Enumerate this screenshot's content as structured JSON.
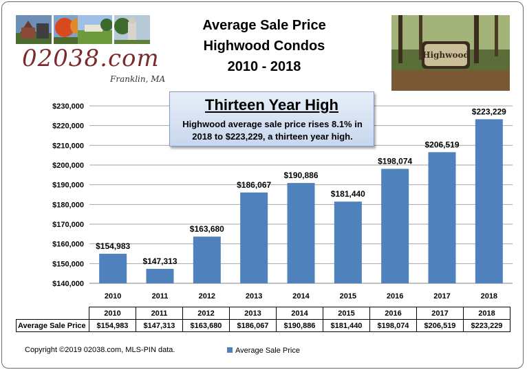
{
  "header": {
    "title_lines": [
      "Average Sale Price",
      "Highwood Condos",
      "2010 - 2018"
    ],
    "logo_text": "02038.com",
    "logo_sub": "Franklin, MA"
  },
  "callout": {
    "title": "Thirteen Year High",
    "body": "Highwood average sale price rises 8.1% in 2018 to $223,229, a thirteen year high."
  },
  "sign_photo": {
    "sign_text": "Highwood"
  },
  "footer": {
    "copyright": "Copyright ©2019 02038.com, MLS-PIN data.",
    "legend_label": "Average Sale Price"
  },
  "colors": {
    "bar": "#4f81bd",
    "grid": "#a6a6a6",
    "frame": "#6b6b6b"
  },
  "chart_data": {
    "type": "bar",
    "title": "Average Sale Price Highwood Condos 2010 - 2018",
    "categories": [
      "2010",
      "2011",
      "2012",
      "2013",
      "2014",
      "2015",
      "2016",
      "2017",
      "2018"
    ],
    "series": [
      {
        "name": "Average Sale Price",
        "values": [
          154983,
          147313,
          163680,
          186067,
          190886,
          181440,
          198074,
          206519,
          223229
        ],
        "labels": [
          "$154,983",
          "$147,313",
          "$163,680",
          "$186,067",
          "$190,886",
          "$181,440",
          "$198,074",
          "$206,519",
          "$223,229"
        ]
      }
    ],
    "yticks": [
      "$140,000",
      "$150,000",
      "$160,000",
      "$170,000",
      "$180,000",
      "$190,000",
      "$200,000",
      "$210,000",
      "$220,000",
      "$230,000"
    ],
    "ylim": [
      140000,
      230000
    ],
    "grid": true,
    "legend": "bottom",
    "data_table": true
  }
}
